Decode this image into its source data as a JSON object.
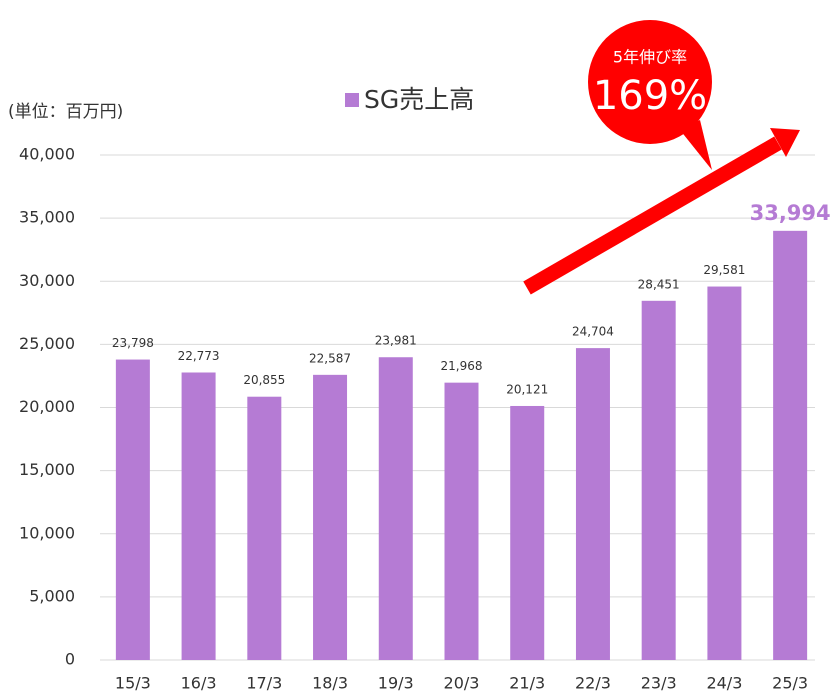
{
  "chart_data": {
    "type": "bar",
    "y_label": "(単位：百万円)",
    "categories": [
      "15/3",
      "16/3",
      "17/3",
      "18/3",
      "19/3",
      "20/3",
      "21/3",
      "22/3",
      "23/3",
      "24/3",
      "25/3"
    ],
    "series": [
      {
        "name": "SG売上高",
        "color": "#b57bd4",
        "values": [
          23798,
          22773,
          20855,
          22587,
          23981,
          21968,
          20121,
          24704,
          28451,
          29581,
          33994
        ],
        "value_labels": [
          "23,798",
          "22,773",
          "20,855",
          "22,587",
          "23,981",
          "21,968",
          "20,121",
          "24,704",
          "28,451",
          "29,581",
          "33,994"
        ]
      }
    ],
    "ylim": [
      0,
      40000
    ],
    "yticks": [
      0,
      {
        "value": 5000,
        "label": "5,000"
      },
      {
        "value": 10000,
        "label": "10,000"
      },
      {
        "value": 15000,
        "label": "15,000"
      },
      {
        "value": 20000,
        "label": "20,000"
      },
      {
        "value": 25000,
        "label": "25,000"
      },
      {
        "value": 30000,
        "label": "30,000"
      },
      {
        "value": 35000,
        "label": "35,000"
      },
      {
        "value": 40000,
        "label": "40,000"
      }
    ],
    "grid": true,
    "annotations": [
      {
        "text": "5年伸び率"
      },
      {
        "text": "169%"
      }
    ]
  }
}
